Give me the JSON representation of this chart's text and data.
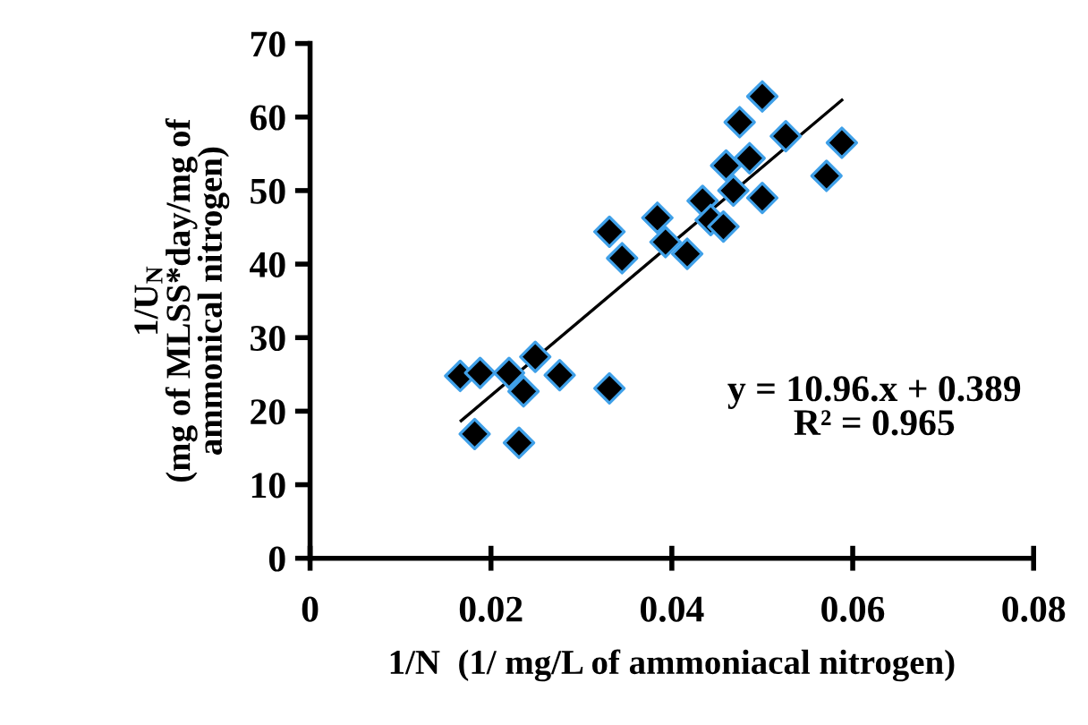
{
  "chart_data": {
    "type": "scatter",
    "xlabel": "1/N  (1/ mg/L of ammoniacal nitrogen)",
    "ylabel": "1/U$_{N}$\n(mg of MLSS*day/mg of\nammonical nitrogen)",
    "annotations": [
      "y = 10.96.x + 0.389\nR² = 0.965"
    ],
    "xlim": [
      0,
      0.08
    ],
    "xticks": [
      0,
      0.02,
      0.04,
      0.06,
      0.08
    ],
    "ylim": [
      0,
      70
    ],
    "yticks": [
      0,
      10,
      20,
      30,
      40,
      50,
      60,
      70
    ],
    "grid": false,
    "legend": false,
    "series": [
      {
        "marker": "diamond",
        "color": "#000000",
        "x": [
          0.0166,
          0.0188,
          0.022,
          0.0249,
          0.0276,
          0.0236,
          0.0331,
          0.0182,
          0.0231,
          0.0331,
          0.0345,
          0.0384,
          0.0393,
          0.0417,
          0.0434,
          0.0443,
          0.0457,
          0.046,
          0.0468,
          0.0475,
          0.0486,
          0.05,
          0.05,
          0.0526,
          0.0571,
          0.0588
        ],
        "values": [
          24.8,
          25.2,
          25.2,
          27.4,
          24.9,
          22.7,
          23.1,
          16.9,
          15.7,
          44.4,
          40.8,
          46.3,
          43.0,
          41.4,
          48.6,
          46.0,
          45.1,
          53.4,
          50.0,
          59.3,
          54.4,
          49.0,
          62.8,
          57.4,
          52.0,
          56.5
        ]
      },
      {
        "type": "line",
        "color": "#000000",
        "x": [
          0.0167,
          0.0588
        ],
        "values": [
          18.7,
          62.3
        ],
        "line_style": "solid",
        "marker": "none"
      }
    ]
  }
}
